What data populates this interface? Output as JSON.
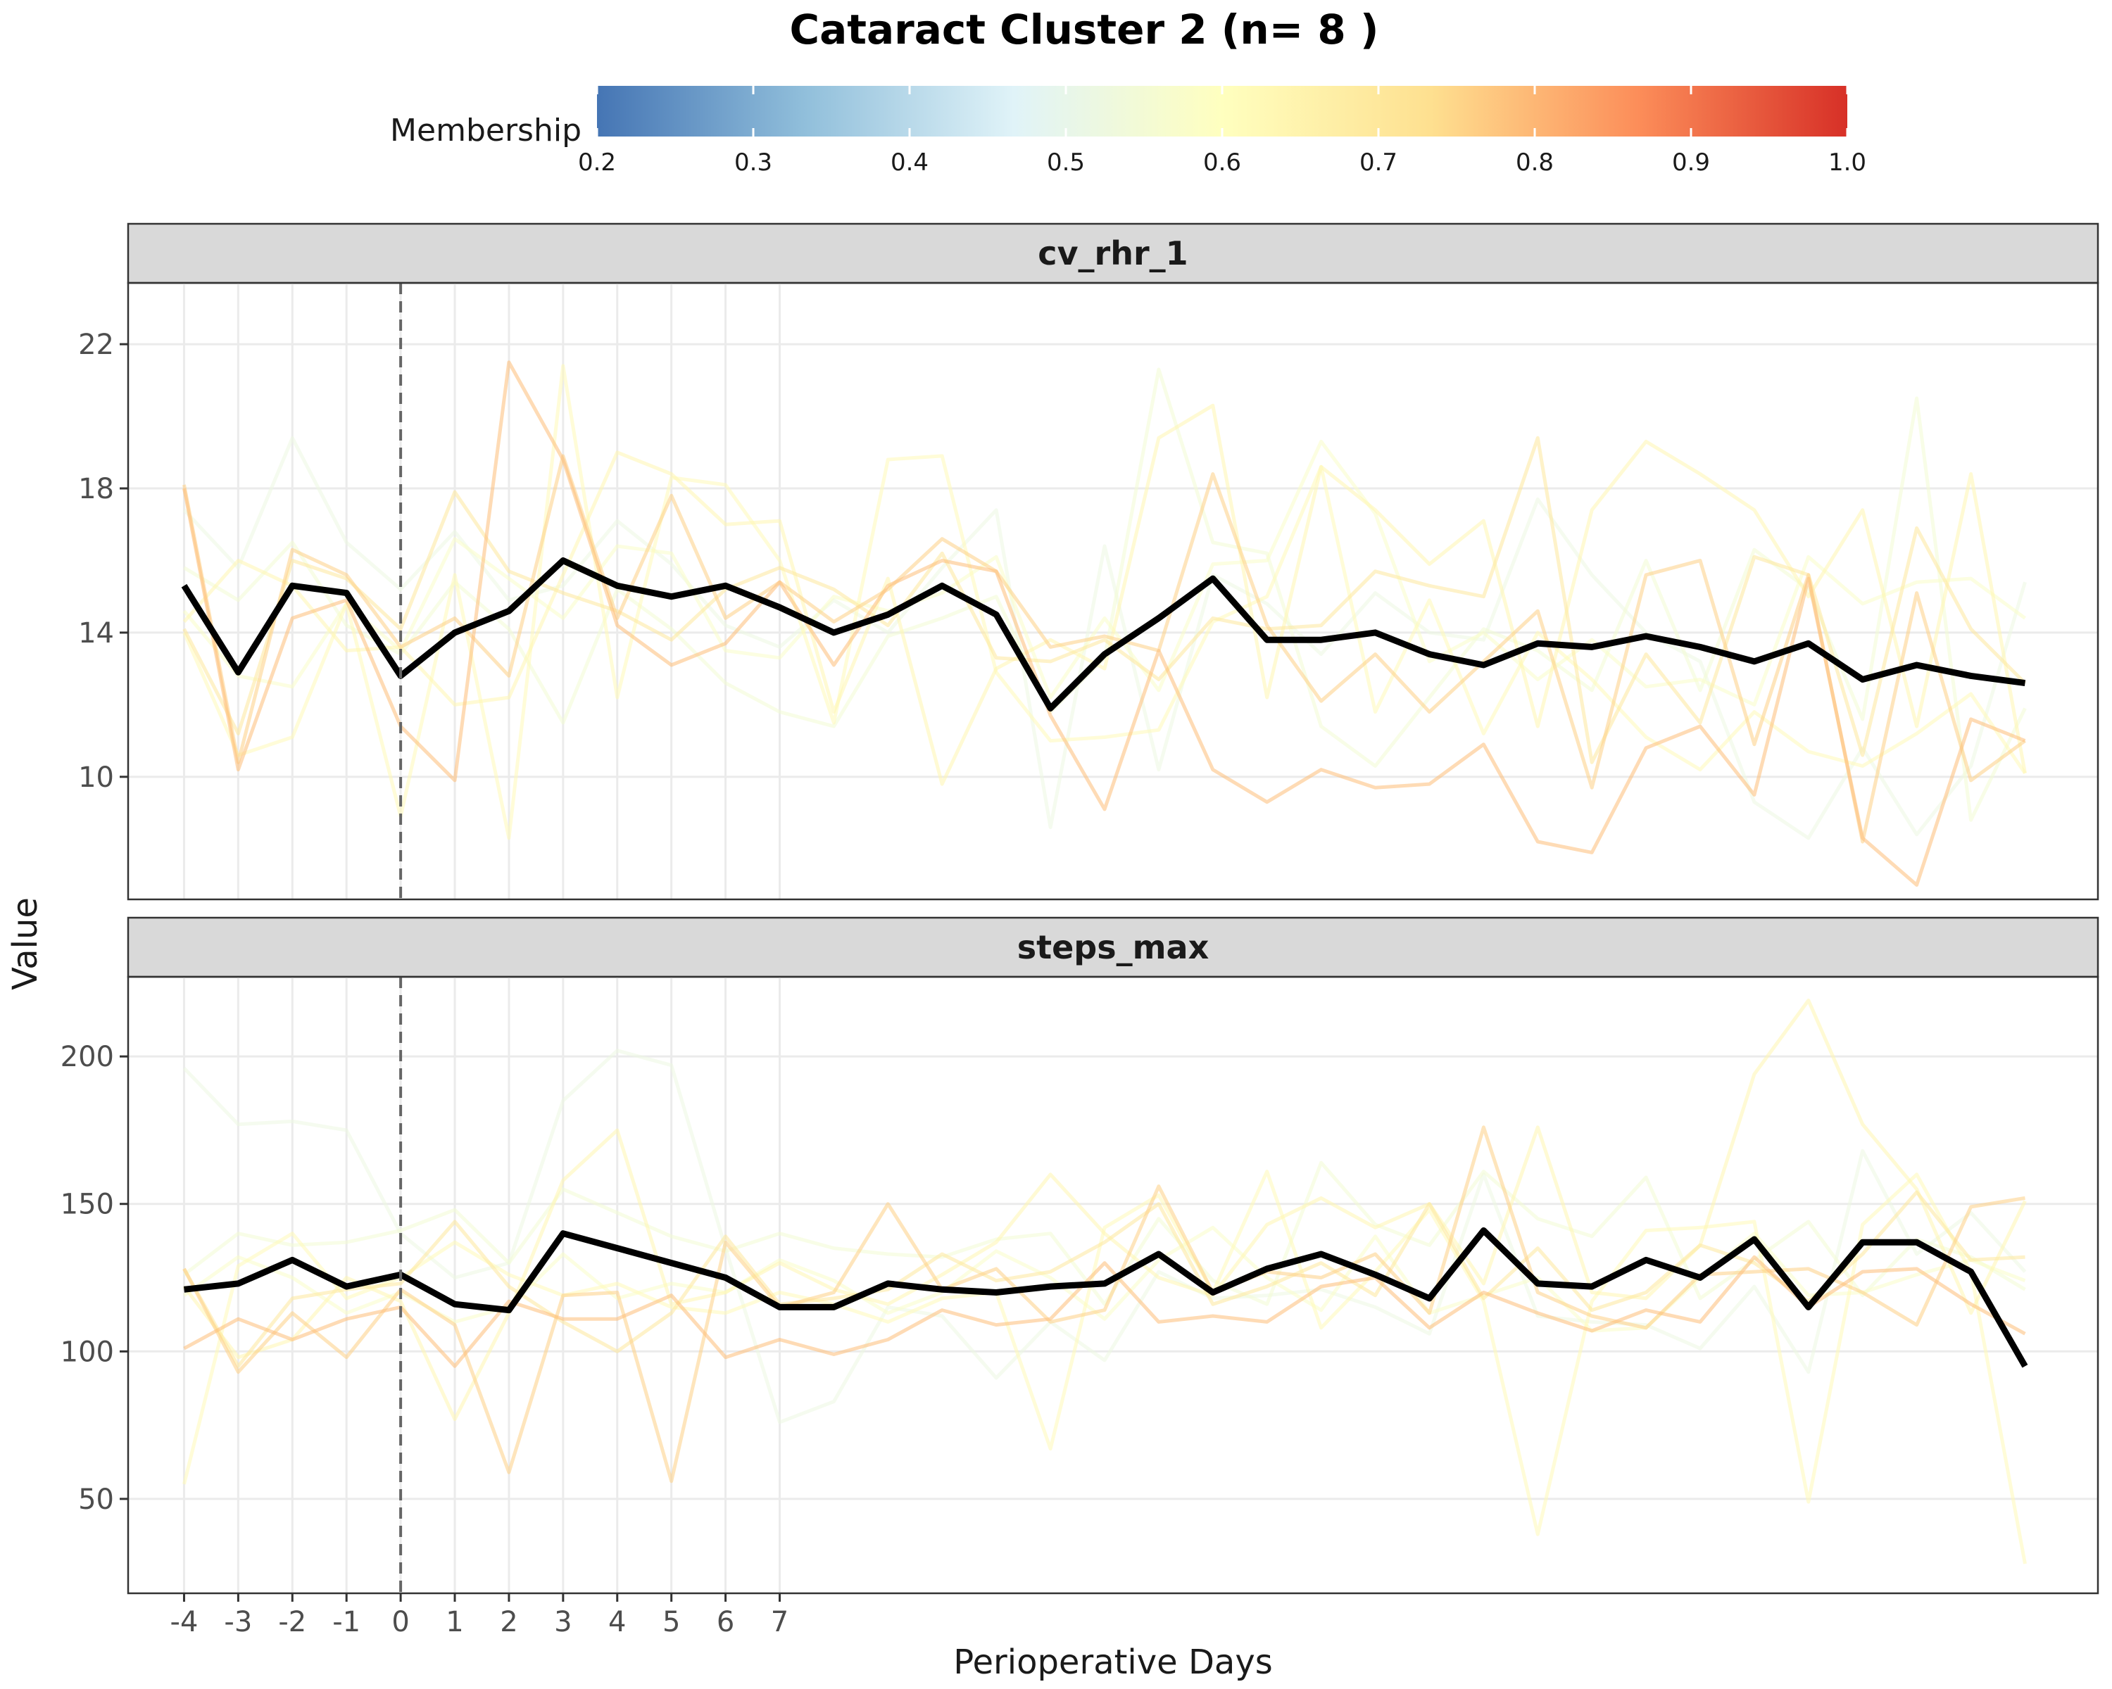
{
  "chart_data": {
    "type": "line",
    "title": "Cataract Cluster 2 (n= 8 )",
    "xlabel": "Perioperative Days",
    "ylabel": "Value",
    "x_tick_labels": [
      "-4",
      "-3",
      "-2",
      "-1",
      "0",
      "1",
      "2",
      "3",
      "4",
      "5",
      "6",
      "7"
    ],
    "x_range": [
      -4,
      30
    ],
    "vline_x": 0,
    "legend": {
      "title": "Membership",
      "position": "top",
      "range": [
        0.2,
        1.0
      ],
      "ticks": [
        "0.2",
        "0.3",
        "0.4",
        "0.5",
        "0.6",
        "0.7",
        "0.8",
        "0.9",
        "1.0"
      ],
      "colors": [
        "#4575b4",
        "#91bfdb",
        "#e0f3f8",
        "#ffffbf",
        "#fee090",
        "#fc8d59",
        "#d73027"
      ]
    },
    "grid": true,
    "panels": [
      {
        "label": "cv_rhr_1",
        "ylim": [
          6.6,
          23.7
        ],
        "y_ticks": [
          10,
          14,
          18,
          22
        ],
        "series": [
          {
            "membership": 0.52,
            "values": [
              17.4,
              15.8,
              19.4,
              16.5,
              15.2,
              16.8,
              14.9,
              15.3,
              17.1,
              15.9,
              14.2,
              13.6,
              14.9,
              14.0,
              15.8,
              17.4,
              8.6,
              16.4,
              10.2,
              15.6,
              14.8,
              13.4,
              15.1,
              14.0,
              13.8,
              17.7,
              15.6,
              14.0,
              13.2,
              9.3,
              8.3,
              10.8,
              8.4,
              10.3,
              15.4
            ]
          },
          {
            "membership": 0.55,
            "values": [
              15.8,
              14.9,
              16.5,
              14.2,
              13.4,
              15.4,
              14.1,
              11.5,
              15.2,
              14.1,
              12.6,
              11.8,
              11.4,
              13.9,
              14.4,
              15.0,
              11.8,
              13.3,
              21.3,
              16.5,
              16.2,
              11.4,
              10.3,
              12.2,
              14.1,
              13.5,
              12.4,
              16.0,
              12.4,
              16.3,
              15.2,
              11.6,
              20.5,
              8.8,
              11.9
            ]
          },
          {
            "membership": 0.58,
            "values": [
              14.6,
              12.8,
              12.5,
              14.8,
              13.5,
              16.6,
              15.5,
              14.4,
              16.4,
              16.2,
              13.5,
              13.3,
              15.0,
              14.6,
              15.1,
              16.1,
              12.2,
              14.4,
              12.4,
              15.9,
              16.0,
              19.3,
              17.3,
              13.2,
              14.0,
              12.7,
              13.8,
              12.5,
              12.7,
              12.0,
              16.1,
              14.8,
              15.4,
              15.5,
              14.4
            ]
          },
          {
            "membership": 0.62,
            "values": [
              14.0,
              10.6,
              11.1,
              14.8,
              8.9,
              15.6,
              8.3,
              21.4,
              12.2,
              18.3,
              18.1,
              16.0,
              11.5,
              18.8,
              18.9,
              12.9,
              11.0,
              11.1,
              11.3,
              14.3,
              15.0,
              18.6,
              11.8,
              14.9,
              11.2,
              14.0,
              12.7,
              11.1,
              10.2,
              11.8,
              10.7,
              10.3,
              11.2,
              12.3,
              10.1
            ]
          },
          {
            "membership": 0.64,
            "values": [
              14.3,
              16.0,
              15.3,
              13.5,
              13.6,
              12.0,
              12.2,
              15.6,
              19.0,
              18.4,
              17.0,
              17.1,
              11.8,
              15.5,
              9.8,
              13.0,
              13.8,
              13.0,
              19.4,
              20.3,
              12.2,
              18.6,
              17.4,
              15.9,
              17.1,
              11.4,
              17.4,
              19.3,
              18.4,
              17.4,
              15.0,
              17.4,
              11.4,
              18.4,
              10.1
            ]
          },
          {
            "membership": 0.7,
            "values": [
              14.1,
              11.2,
              16.0,
              15.5,
              14.1,
              17.9,
              15.7,
              15.1,
              14.6,
              13.8,
              15.2,
              15.8,
              15.2,
              14.2,
              16.2,
              13.3,
              13.2,
              13.8,
              12.7,
              14.4,
              14.1,
              14.2,
              15.7,
              15.3,
              15.0,
              19.4,
              10.4,
              13.4,
              11.5,
              16.1,
              15.6,
              10.6,
              16.9,
              14.1,
              12.6
            ]
          },
          {
            "membership": 0.76,
            "values": [
              18.1,
              10.4,
              16.3,
              15.6,
              13.6,
              14.4,
              12.8,
              18.9,
              14.4,
              17.8,
              14.4,
              15.4,
              14.3,
              15.2,
              16.6,
              15.7,
              13.6,
              13.9,
              13.5,
              18.4,
              14.2,
              12.1,
              13.4,
              11.8,
              13.2,
              14.6,
              9.7,
              15.6,
              16.0,
              10.9,
              15.6,
              8.2,
              15.1,
              9.9,
              11.0
            ]
          },
          {
            "membership": 0.79,
            "values": [
              18.0,
              10.2,
              14.4,
              14.9,
              11.4,
              9.9,
              21.5,
              18.8,
              14.2,
              13.1,
              13.7,
              15.4,
              13.1,
              15.3,
              16.0,
              15.7,
              11.7,
              9.1,
              13.5,
              10.2,
              9.3,
              10.2,
              9.7,
              9.8,
              10.9,
              8.2,
              7.9,
              10.8,
              11.4,
              9.5,
              15.5,
              8.3,
              7.0,
              11.6,
              11.0
            ]
          }
        ],
        "mean": [
          15.3,
          12.9,
          15.3,
          15.1,
          12.8,
          14.0,
          14.6,
          16.0,
          15.3,
          15.0,
          15.3,
          14.7,
          14.0,
          14.5,
          15.3,
          14.5,
          11.9,
          13.4,
          14.4,
          15.5,
          13.8,
          13.8,
          14.0,
          13.4,
          13.1,
          13.7,
          13.6,
          13.9,
          13.6,
          13.2,
          13.7,
          12.7,
          13.1,
          12.8,
          12.6
        ]
      },
      {
        "label": "steps_max",
        "ylim": [
          18,
          227
        ],
        "y_ticks": [
          50,
          100,
          150,
          200
        ],
        "series": [
          {
            "membership": 0.52,
            "values": [
              196,
              177,
              178,
              175,
              140,
              125,
              130,
              185,
              202,
              197,
              135,
              76,
              83,
              115,
              112,
              91,
              110,
              97,
              127,
              118,
              119,
              121,
              115,
              106,
              160,
              112,
              110,
              109,
              101,
              122,
              93,
              168,
              133,
              147,
              127
            ]
          },
          {
            "membership": 0.55,
            "values": [
              126,
              140,
              136,
              137,
              141,
              148,
              130,
              155,
              147,
              139,
              134,
              140,
              135,
              133,
              132,
              138,
              140,
              116,
              145,
              124,
              116,
              164,
              143,
              136,
              161,
              145,
              139,
              159,
              118,
              131,
              144,
              119,
              138,
              132,
              121
            ]
          },
          {
            "membership": 0.58,
            "values": [
              119,
              132,
              125,
              113,
              120,
              110,
              115,
              133,
              118,
              123,
              120,
              131,
              124,
              113,
              120,
              134,
              125,
              111,
              131,
              142,
              125,
              114,
              139,
              113,
              119,
              125,
              107,
              108,
              125,
              140,
              119,
              120,
              126,
              131,
              124
            ]
          },
          {
            "membership": 0.62,
            "values": [
              55,
              129,
              140,
              118,
              125,
              137,
              126,
              119,
              123,
              115,
              113,
              120,
              116,
              110,
              118,
              120,
              67,
              142,
              153,
              120,
              161,
              108,
              127,
              148,
              117,
              38,
              117,
              141,
              142,
              144,
              49,
              143,
              160,
              127,
              28
            ]
          },
          {
            "membership": 0.64,
            "values": [
              122,
              98,
              104,
              125,
              117,
              77,
              113,
              158,
              175,
              116,
              120,
              130,
              121,
              116,
              126,
              137,
              160,
              140,
              125,
              119,
              143,
              152,
              142,
              150,
              123,
              176,
              120,
              118,
              136,
              194,
              219,
              177,
              155,
              113,
              151
            ]
          },
          {
            "membership": 0.7,
            "values": [
              128,
              95,
              118,
              121,
              123,
              144,
              122,
              110,
              100,
              113,
              139,
              116,
              118,
              121,
              133,
              124,
              127,
              137,
              150,
              116,
              122,
              130,
              119,
              150,
              118,
              135,
              114,
              120,
              136,
              130,
              117,
              133,
              154,
              131,
              132
            ]
          },
          {
            "membership": 0.76,
            "values": [
              128,
              93,
              113,
              98,
              121,
              109,
              59,
              119,
              120,
              56,
              137,
              115,
              120,
              150,
              121,
              128,
              110,
              114,
              156,
              120,
              127,
              125,
              133,
              113,
              176,
              120,
              112,
              108,
              126,
              127,
              128,
              120,
              109,
              149,
              152
            ]
          },
          {
            "membership": 0.79,
            "values": [
              101,
              111,
              104,
              111,
              115,
              95,
              117,
              111,
              111,
              119,
              98,
              104,
              99,
              104,
              114,
              109,
              111,
              130,
              110,
              112,
              110,
              122,
              125,
              108,
              120,
              113,
              107,
              114,
              110,
              132,
              115,
              127,
              128,
              116,
              106
            ]
          }
        ],
        "mean": [
          121,
          123,
          131,
          122,
          126,
          116,
          114,
          140,
          135,
          130,
          125,
          115,
          115,
          123,
          121,
          120,
          122,
          123,
          133,
          120,
          128,
          133,
          126,
          118,
          141,
          123,
          122,
          131,
          125,
          138,
          115,
          137,
          137,
          127,
          95
        ]
      }
    ]
  }
}
